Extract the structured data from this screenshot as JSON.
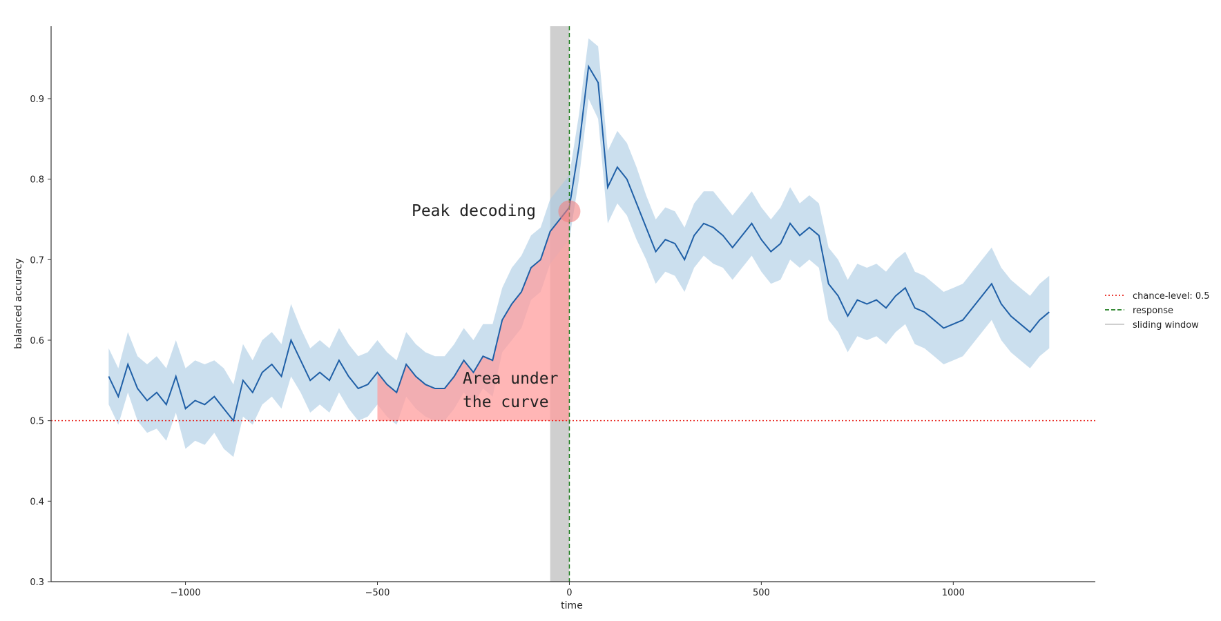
{
  "chart_data": {
    "type": "line",
    "xlabel": "time",
    "ylabel": "balanced accuracy",
    "xlim": [
      -1350,
      1370
    ],
    "ylim": [
      0.3,
      0.99
    ],
    "x_ticks": [
      -1000,
      -500,
      0,
      500,
      1000
    ],
    "x_tick_labels": [
      "−1000",
      "−500",
      "0",
      "500",
      "1000"
    ],
    "y_ticks": [
      0.3,
      0.4,
      0.5,
      0.6,
      0.7,
      0.8,
      0.9
    ],
    "y_tick_labels": [
      "0.3",
      "0.4",
      "0.5",
      "0.6",
      "0.7",
      "0.8",
      "0.9"
    ],
    "grid": false,
    "legend_position": "right",
    "series": [
      {
        "color": "#1f5fa6",
        "band_color": "#a9c9e3",
        "x": [
          -1200,
          -1175,
          -1150,
          -1125,
          -1100,
          -1075,
          -1050,
          -1025,
          -1000,
          -975,
          -950,
          -925,
          -900,
          -875,
          -850,
          -825,
          -800,
          -775,
          -750,
          -725,
          -700,
          -675,
          -650,
          -625,
          -600,
          -575,
          -550,
          -525,
          -500,
          -475,
          -450,
          -425,
          -400,
          -375,
          -350,
          -325,
          -300,
          -275,
          -250,
          -225,
          -200,
          -175,
          -150,
          -125,
          -100,
          -75,
          -50,
          -25,
          0,
          25,
          50,
          75,
          100,
          125,
          150,
          175,
          200,
          225,
          250,
          275,
          300,
          325,
          350,
          375,
          400,
          425,
          450,
          475,
          500,
          525,
          550,
          575,
          600,
          625,
          650,
          675,
          700,
          725,
          750,
          775,
          800,
          825,
          850,
          875,
          900,
          925,
          950,
          975,
          1000,
          1025,
          1050,
          1075,
          1100,
          1125,
          1150,
          1175,
          1200,
          1225,
          1250
        ],
        "values": [
          0.555,
          0.53,
          0.57,
          0.54,
          0.525,
          0.535,
          0.52,
          0.555,
          0.515,
          0.525,
          0.52,
          0.53,
          0.515,
          0.5,
          0.55,
          0.535,
          0.56,
          0.57,
          0.555,
          0.6,
          0.575,
          0.55,
          0.56,
          0.55,
          0.575,
          0.555,
          0.54,
          0.545,
          0.56,
          0.545,
          0.535,
          0.57,
          0.555,
          0.545,
          0.54,
          0.54,
          0.555,
          0.575,
          0.56,
          0.58,
          0.575,
          0.625,
          0.645,
          0.66,
          0.69,
          0.7,
          0.735,
          0.75,
          0.765,
          0.84,
          0.94,
          0.92,
          0.79,
          0.815,
          0.8,
          0.77,
          0.74,
          0.71,
          0.725,
          0.72,
          0.7,
          0.73,
          0.745,
          0.74,
          0.73,
          0.715,
          0.73,
          0.745,
          0.725,
          0.71,
          0.72,
          0.745,
          0.73,
          0.74,
          0.73,
          0.67,
          0.655,
          0.63,
          0.65,
          0.645,
          0.65,
          0.64,
          0.655,
          0.665,
          0.64,
          0.635,
          0.625,
          0.615,
          0.62,
          0.625,
          0.64,
          0.655,
          0.67,
          0.645,
          0.63,
          0.62,
          0.61,
          0.625,
          0.635
        ],
        "lower": [
          0.52,
          0.495,
          0.535,
          0.5,
          0.485,
          0.49,
          0.475,
          0.51,
          0.465,
          0.475,
          0.47,
          0.485,
          0.465,
          0.455,
          0.505,
          0.495,
          0.52,
          0.53,
          0.515,
          0.555,
          0.535,
          0.51,
          0.52,
          0.51,
          0.535,
          0.515,
          0.5,
          0.505,
          0.52,
          0.505,
          0.495,
          0.53,
          0.515,
          0.505,
          0.5,
          0.5,
          0.515,
          0.535,
          0.52,
          0.54,
          0.53,
          0.585,
          0.6,
          0.615,
          0.65,
          0.66,
          0.695,
          0.71,
          0.725,
          0.8,
          0.9,
          0.875,
          0.745,
          0.77,
          0.755,
          0.725,
          0.7,
          0.67,
          0.685,
          0.68,
          0.66,
          0.69,
          0.705,
          0.695,
          0.69,
          0.675,
          0.69,
          0.705,
          0.685,
          0.67,
          0.675,
          0.7,
          0.69,
          0.7,
          0.69,
          0.625,
          0.61,
          0.585,
          0.605,
          0.6,
          0.605,
          0.595,
          0.61,
          0.62,
          0.595,
          0.59,
          0.58,
          0.57,
          0.575,
          0.58,
          0.595,
          0.61,
          0.625,
          0.6,
          0.585,
          0.575,
          0.565,
          0.58,
          0.59
        ],
        "upper": [
          0.59,
          0.565,
          0.61,
          0.58,
          0.57,
          0.58,
          0.565,
          0.6,
          0.565,
          0.575,
          0.57,
          0.575,
          0.565,
          0.545,
          0.595,
          0.575,
          0.6,
          0.61,
          0.595,
          0.645,
          0.615,
          0.59,
          0.6,
          0.59,
          0.615,
          0.595,
          0.58,
          0.585,
          0.6,
          0.585,
          0.575,
          0.61,
          0.595,
          0.585,
          0.58,
          0.58,
          0.595,
          0.615,
          0.6,
          0.62,
          0.62,
          0.665,
          0.69,
          0.705,
          0.73,
          0.74,
          0.775,
          0.79,
          0.805,
          0.88,
          0.975,
          0.965,
          0.835,
          0.86,
          0.845,
          0.815,
          0.78,
          0.75,
          0.765,
          0.76,
          0.74,
          0.77,
          0.785,
          0.785,
          0.77,
          0.755,
          0.77,
          0.785,
          0.765,
          0.75,
          0.765,
          0.79,
          0.77,
          0.78,
          0.77,
          0.715,
          0.7,
          0.675,
          0.695,
          0.69,
          0.695,
          0.685,
          0.7,
          0.71,
          0.685,
          0.68,
          0.67,
          0.66,
          0.665,
          0.67,
          0.685,
          0.7,
          0.715,
          0.69,
          0.675,
          0.665,
          0.655,
          0.67,
          0.68
        ]
      }
    ],
    "chance_level": 0.5,
    "response_time": 0,
    "sliding_window": [
      -50,
      0
    ],
    "peak": {
      "x": 0,
      "y": 0.76
    },
    "auc_range": [
      -500,
      0
    ],
    "annotations": {
      "peak_label": "Peak decoding",
      "auc_label_line1": "Area under",
      "auc_label_line2": "the curve"
    },
    "legend": [
      {
        "label": "chance-level: 0.5",
        "style": "dotted",
        "color": "#e8231c"
      },
      {
        "label": "response",
        "style": "dashed",
        "color": "#1a7a1a"
      },
      {
        "label": "sliding window",
        "style": "solid",
        "color": "#c8c8c8"
      }
    ],
    "colors": {
      "chance": "#e8231c",
      "response": "#1a7a1a",
      "window": "#cfcfcf",
      "auc": "#ff9d9d",
      "peak_marker": "#f08080",
      "axis": "#333333"
    }
  }
}
